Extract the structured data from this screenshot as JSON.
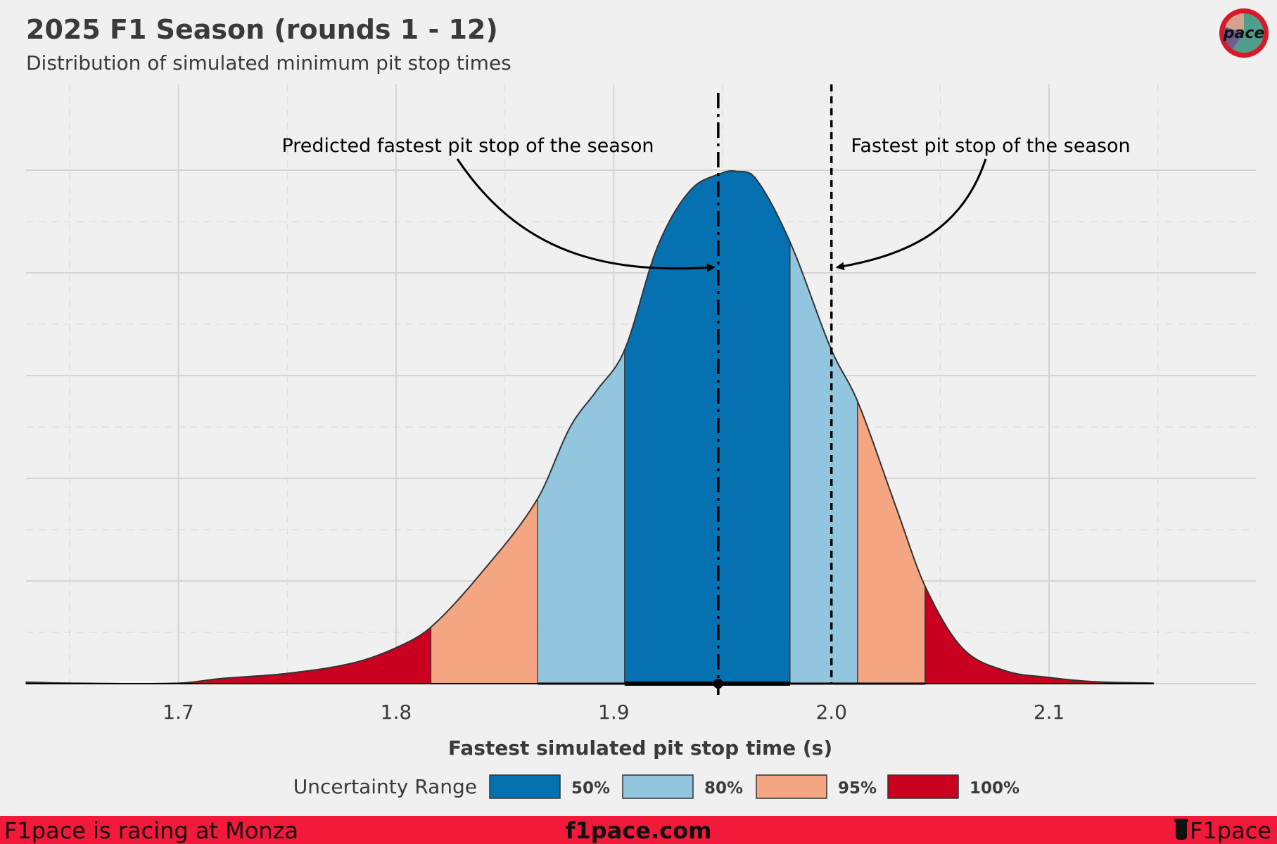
{
  "header": {
    "title": "2025 F1 Season (rounds 1 - 12)",
    "subtitle": "Distribution of simulated minimum pit stop times"
  },
  "logo": {
    "icon": "f1pace-badge-icon",
    "text": "pace"
  },
  "footer": {
    "left": "F1pace is racing at Monza",
    "center": "f1pace.com",
    "right": "F1pace",
    "right_icon": "cup-icon",
    "color": "#f2193a"
  },
  "chart_data": {
    "type": "area",
    "title": "2025 F1 Season (rounds 1 - 12)",
    "subtitle": "Distribution of simulated minimum pit stop times",
    "xlabel": "Fastest simulated pit stop time (s)",
    "ylabel": "",
    "xlim": [
      1.63,
      2.195
    ],
    "ylim": [
      0,
      1.0
    ],
    "x_ticks": [
      1.7,
      1.8,
      1.9,
      2.0,
      2.1
    ],
    "x_tick_labels": [
      "1.7",
      "1.8",
      "1.9",
      "2.0",
      "2.1"
    ],
    "grid": true,
    "density": {
      "x": [
        1.63,
        1.65,
        1.7,
        1.72,
        1.75,
        1.78,
        1.8,
        1.816,
        1.84,
        1.865,
        1.88,
        1.892,
        1.905,
        1.92,
        1.935,
        1.95,
        1.956,
        1.965,
        1.981,
        2.0,
        2.012,
        2.03,
        2.043,
        2.06,
        2.08,
        2.1,
        2.12,
        2.148
      ],
      "y": [
        0.003,
        0.001,
        0.001,
        0.01,
        0.02,
        0.04,
        0.07,
        0.11,
        0.22,
        0.36,
        0.5,
        0.57,
        0.65,
        0.85,
        0.96,
        0.995,
        0.998,
        0.985,
        0.86,
        0.65,
        0.55,
        0.34,
        0.19,
        0.07,
        0.025,
        0.012,
        0.004,
        0.001
      ]
    },
    "bands": [
      {
        "label": "100%",
        "from": 1.63,
        "to": 1.816,
        "color": "#ca0020"
      },
      {
        "label": "95%",
        "from": 1.816,
        "to": 1.865,
        "color": "#f4a582"
      },
      {
        "label": "80%",
        "from": 1.865,
        "to": 1.905,
        "color": "#92c5de"
      },
      {
        "label": "50%",
        "from": 1.905,
        "to": 1.981,
        "color": "#0571b0"
      },
      {
        "label": "80%",
        "from": 1.981,
        "to": 2.012,
        "color": "#92c5de"
      },
      {
        "label": "95%",
        "from": 2.012,
        "to": 2.043,
        "color": "#f4a582"
      },
      {
        "label": "100%",
        "from": 2.043,
        "to": 2.148,
        "color": "#ca0020"
      }
    ],
    "interval_segments": [
      {
        "from": 1.865,
        "to": 2.043,
        "weight": "thin"
      },
      {
        "from": 1.905,
        "to": 1.981,
        "weight": "thick"
      }
    ],
    "point_estimate": 1.948,
    "reference_lines": [
      {
        "x": 1.948,
        "style": "dash-dot",
        "label": "Predicted fastest pit stop of the season"
      },
      {
        "x": 2.0,
        "style": "dashed",
        "label": "Fastest pit stop of the season"
      }
    ],
    "legend": {
      "title": "Uncertainty Range",
      "position": "bottom",
      "items": [
        {
          "label": "50%",
          "color": "#0571b0"
        },
        {
          "label": "80%",
          "color": "#92c5de"
        },
        {
          "label": "95%",
          "color": "#f4a582"
        },
        {
          "label": "100%",
          "color": "#ca0020"
        }
      ]
    }
  }
}
